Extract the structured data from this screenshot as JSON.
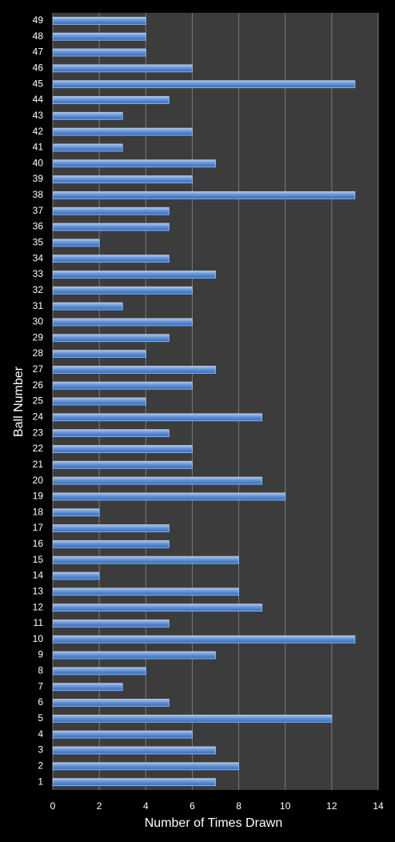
{
  "chart_data": {
    "type": "bar",
    "orientation": "horizontal",
    "x_label": "Number of Times Drawn",
    "y_label": "Ball Number",
    "categories": [
      "1",
      "2",
      "3",
      "4",
      "5",
      "6",
      "7",
      "8",
      "9",
      "10",
      "11",
      "12",
      "13",
      "14",
      "15",
      "16",
      "17",
      "18",
      "19",
      "20",
      "21",
      "22",
      "23",
      "24",
      "25",
      "26",
      "27",
      "28",
      "29",
      "30",
      "31",
      "32",
      "33",
      "34",
      "35",
      "36",
      "37",
      "38",
      "39",
      "40",
      "41",
      "42",
      "43",
      "44",
      "45",
      "46",
      "47",
      "48",
      "49"
    ],
    "values": [
      7,
      8,
      7,
      6,
      12,
      5,
      3,
      4,
      7,
      13,
      5,
      9,
      8,
      2,
      8,
      5,
      5,
      2,
      10,
      9,
      6,
      6,
      5,
      9,
      4,
      6,
      7,
      4,
      5,
      6,
      3,
      6,
      7,
      5,
      2,
      5,
      5,
      13,
      6,
      7,
      3,
      6,
      3,
      5,
      13,
      6,
      4,
      4,
      4
    ],
    "color": "#5b8fd6",
    "xlim": [
      0,
      14
    ],
    "xticks": [
      0,
      2,
      4,
      6,
      8,
      10,
      12,
      14
    ],
    "grid": true
  }
}
